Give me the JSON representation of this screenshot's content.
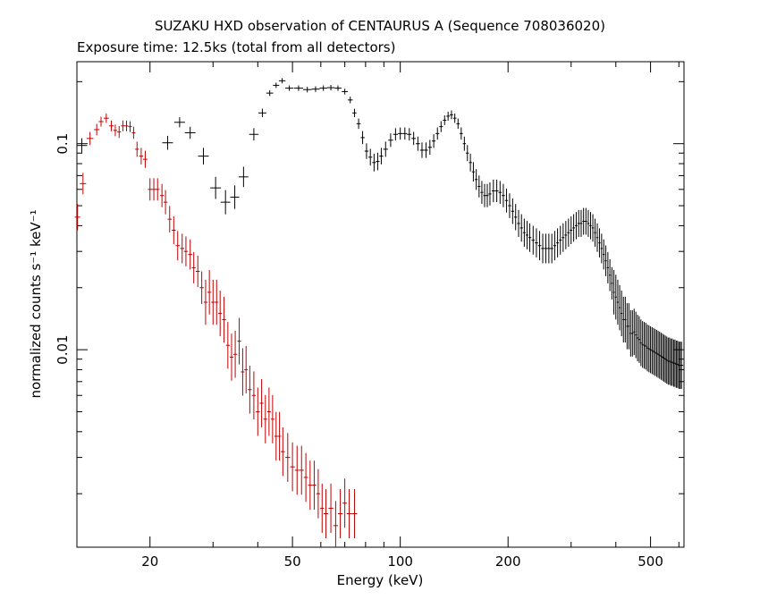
{
  "chart_data": {
    "type": "scatter",
    "title": "SUZAKU HXD observation of CENTAURUS A (Sequence 708036020)",
    "subtitle": "Exposure time: 12.5ks (total from all detectors)",
    "xlabel": "Energy (keV)",
    "ylabel": "normalized counts s⁻¹ keV⁻¹",
    "x_scale": "log",
    "y_scale": "log",
    "xlim": [
      12.5,
      620
    ],
    "ylim": [
      0.0011,
      0.25
    ],
    "x_tick_labels": [
      {
        "value": 20,
        "label": "20"
      },
      {
        "value": 50,
        "label": "50"
      },
      {
        "value": 100,
        "label": "100"
      },
      {
        "value": 200,
        "label": "200"
      },
      {
        "value": 500,
        "label": "500"
      }
    ],
    "y_tick_labels": [
      {
        "value": 0.1,
        "label": "0.1"
      },
      {
        "value": 0.01,
        "label": "0.01"
      }
    ],
    "grid": false,
    "series": [
      {
        "color": "#000000",
        "points": [
          [
            12.9,
            0.098
          ],
          [
            22.4,
            0.101
          ],
          [
            24.2,
            0.127
          ],
          [
            25.9,
            0.113
          ],
          [
            28.2,
            0.087
          ],
          [
            30.5,
            0.061
          ],
          [
            32.5,
            0.052
          ],
          [
            34.5,
            0.055
          ],
          [
            36.5,
            0.069
          ],
          [
            39.0,
            0.111
          ],
          [
            41.2,
            0.141
          ],
          [
            43.2,
            0.176
          ],
          [
            45.0,
            0.192
          ],
          [
            46.8,
            0.202
          ],
          [
            49.0,
            0.186
          ],
          [
            52.0,
            0.186
          ],
          [
            55.0,
            0.183
          ],
          [
            58.0,
            0.184
          ],
          [
            61.0,
            0.186
          ],
          [
            64.0,
            0.187
          ],
          [
            67.0,
            0.186
          ],
          [
            70.0,
            0.179
          ],
          [
            72.5,
            0.163
          ],
          [
            74.5,
            0.141
          ],
          [
            76.5,
            0.125
          ],
          [
            78.5,
            0.107
          ],
          [
            80.5,
            0.092
          ],
          [
            82.5,
            0.086
          ],
          [
            84.5,
            0.081
          ],
          [
            86.5,
            0.082
          ],
          [
            88.5,
            0.087
          ],
          [
            91.0,
            0.094
          ],
          [
            94.0,
            0.104
          ],
          [
            97.0,
            0.111
          ],
          [
            100.0,
            0.112
          ],
          [
            103.0,
            0.112
          ],
          [
            106.0,
            0.111
          ],
          [
            109.0,
            0.106
          ],
          [
            112.0,
            0.1
          ],
          [
            115.0,
            0.093
          ],
          [
            118.0,
            0.093
          ],
          [
            121.0,
            0.096
          ],
          [
            124.0,
            0.103
          ],
          [
            127.0,
            0.112
          ],
          [
            130.0,
            0.121
          ],
          [
            133.0,
            0.13
          ],
          [
            136.0,
            0.136
          ],
          [
            139.0,
            0.138
          ],
          [
            142.0,
            0.133
          ],
          [
            145.0,
            0.125
          ],
          [
            148.0,
            0.112
          ],
          [
            151.0,
            0.1
          ],
          [
            154.0,
            0.09
          ],
          [
            157.0,
            0.081
          ],
          [
            160.0,
            0.073
          ],
          [
            163.0,
            0.067
          ],
          [
            166.0,
            0.062
          ],
          [
            169.0,
            0.058
          ],
          [
            172.0,
            0.056
          ],
          [
            175.0,
            0.056
          ],
          [
            178.0,
            0.057
          ],
          [
            182.0,
            0.059
          ],
          [
            186.0,
            0.059
          ],
          [
            190.0,
            0.058
          ],
          [
            194.0,
            0.056
          ],
          [
            198.0,
            0.053
          ],
          [
            202.0,
            0.05
          ],
          [
            206.0,
            0.047
          ],
          [
            210.0,
            0.044
          ],
          [
            214.0,
            0.041
          ],
          [
            218.0,
            0.039
          ],
          [
            222.0,
            0.037
          ],
          [
            226.0,
            0.036
          ],
          [
            230.0,
            0.035
          ],
          [
            235.0,
            0.034
          ],
          [
            240.0,
            0.033
          ],
          [
            245.0,
            0.032
          ],
          [
            250.0,
            0.031
          ],
          [
            255.0,
            0.031
          ],
          [
            260.0,
            0.031
          ],
          [
            265.0,
            0.031
          ],
          [
            270.0,
            0.032
          ],
          [
            275.0,
            0.033
          ],
          [
            280.0,
            0.034
          ],
          [
            285.0,
            0.035
          ],
          [
            290.0,
            0.036
          ],
          [
            295.0,
            0.037
          ],
          [
            300.0,
            0.038
          ],
          [
            305.0,
            0.039
          ],
          [
            310.0,
            0.04
          ],
          [
            315.0,
            0.041
          ],
          [
            320.0,
            0.041
          ],
          [
            325.0,
            0.042
          ],
          [
            330.0,
            0.042
          ],
          [
            335.0,
            0.041
          ],
          [
            340.0,
            0.04
          ],
          [
            345.0,
            0.039
          ],
          [
            350.0,
            0.037
          ],
          [
            355.0,
            0.035
          ],
          [
            360.0,
            0.033
          ],
          [
            365.0,
            0.031
          ],
          [
            370.0,
            0.029
          ],
          [
            375.0,
            0.027
          ],
          [
            380.0,
            0.025
          ],
          [
            385.0,
            0.023
          ],
          [
            390.0,
            0.021
          ],
          [
            395.0,
            0.019
          ],
          [
            400.0,
            0.018
          ],
          [
            405.0,
            0.017
          ],
          [
            410.0,
            0.016
          ],
          [
            415.0,
            0.015
          ],
          [
            420.0,
            0.014
          ],
          [
            425.0,
            0.014
          ],
          [
            430.0,
            0.013
          ],
          [
            435.0,
            0.013
          ],
          [
            440.0,
            0.012
          ],
          [
            445.0,
            0.012
          ],
          [
            450.0,
            0.0122
          ],
          [
            455.0,
            0.0118
          ],
          [
            460.0,
            0.0114
          ],
          [
            465.0,
            0.0112
          ],
          [
            470.0,
            0.0108
          ],
          [
            475.0,
            0.0106
          ],
          [
            480.0,
            0.0105
          ],
          [
            485.0,
            0.0104
          ],
          [
            490.0,
            0.0102
          ],
          [
            495.0,
            0.0101
          ],
          [
            500.0,
            0.01
          ],
          [
            505.0,
            0.0099
          ],
          [
            510.0,
            0.0098
          ],
          [
            515.0,
            0.0097
          ],
          [
            520.0,
            0.0096
          ],
          [
            525.0,
            0.0095
          ],
          [
            530.0,
            0.0094
          ],
          [
            535.0,
            0.0093
          ],
          [
            540.0,
            0.0092
          ],
          [
            545.0,
            0.0091
          ],
          [
            550.0,
            0.009
          ],
          [
            555.0,
            0.0089
          ],
          [
            560.0,
            0.0088
          ],
          [
            565.0,
            0.0088
          ],
          [
            570.0,
            0.0087
          ],
          [
            575.0,
            0.0087
          ],
          [
            580.0,
            0.0086
          ],
          [
            585.0,
            0.0086
          ],
          [
            590.0,
            0.0085
          ],
          [
            595.0,
            0.0085
          ],
          [
            600.0,
            0.0084
          ],
          [
            605.0,
            0.0084
          ],
          [
            610.0,
            0.0084
          ]
        ]
      },
      {
        "color": "#c00000",
        "points": [
          [
            12.55,
            0.044
          ],
          [
            13.0,
            0.064
          ],
          [
            13.6,
            0.106
          ],
          [
            14.2,
            0.117
          ],
          [
            14.6,
            0.128
          ],
          [
            15.1,
            0.133
          ],
          [
            15.6,
            0.122
          ],
          [
            16.0,
            0.116
          ],
          [
            16.4,
            0.114
          ],
          [
            16.8,
            0.122
          ],
          [
            17.2,
            0.122
          ],
          [
            17.6,
            0.121
          ],
          [
            18.0,
            0.113
          ],
          [
            18.4,
            0.094
          ],
          [
            18.9,
            0.087
          ],
          [
            19.4,
            0.084
          ],
          [
            20.0,
            0.06
          ],
          [
            20.5,
            0.06
          ],
          [
            21.0,
            0.06
          ],
          [
            21.6,
            0.056
          ],
          [
            22.1,
            0.052
          ],
          [
            22.7,
            0.043
          ],
          [
            23.3,
            0.038
          ],
          [
            23.9,
            0.032
          ],
          [
            24.6,
            0.031
          ],
          [
            25.2,
            0.03
          ],
          [
            25.9,
            0.029
          ],
          [
            26.5,
            0.025
          ],
          [
            27.2,
            0.024
          ],
          [
            27.9,
            0.02
          ],
          [
            28.6,
            0.017
          ],
          [
            29.3,
            0.019
          ],
          [
            30.0,
            0.017
          ],
          [
            30.7,
            0.017
          ],
          [
            31.4,
            0.015
          ],
          [
            32.2,
            0.014
          ],
          [
            33.0,
            0.0105
          ],
          [
            33.8,
            0.0092
          ],
          [
            34.6,
            0.0095
          ],
          [
            35.5,
            0.011
          ],
          [
            36.3,
            0.0078
          ],
          [
            37.1,
            0.008
          ],
          [
            38.0,
            0.0064
          ],
          [
            39.0,
            0.006
          ],
          [
            40.0,
            0.005
          ],
          [
            41.0,
            0.0055
          ],
          [
            42.0,
            0.0046
          ],
          [
            43.0,
            0.005
          ],
          [
            44.0,
            0.0046
          ],
          [
            45.0,
            0.0038
          ],
          [
            46.0,
            0.0038
          ],
          [
            47.0,
            0.0032
          ],
          [
            48.5,
            0.003
          ],
          [
            50.0,
            0.0027
          ],
          [
            51.5,
            0.0026
          ],
          [
            53.0,
            0.0026
          ],
          [
            54.5,
            0.0024
          ],
          [
            56.0,
            0.0022
          ],
          [
            57.5,
            0.0022
          ],
          [
            59.0,
            0.002
          ],
          [
            60.5,
            0.0017
          ],
          [
            62.0,
            0.0016
          ],
          [
            64.0,
            0.0017
          ],
          [
            66.0,
            0.0014
          ],
          [
            68.0,
            0.0016
          ],
          [
            70.0,
            0.0018
          ],
          [
            72.0,
            0.0016
          ],
          [
            74.5,
            0.0016
          ]
        ]
      }
    ]
  }
}
